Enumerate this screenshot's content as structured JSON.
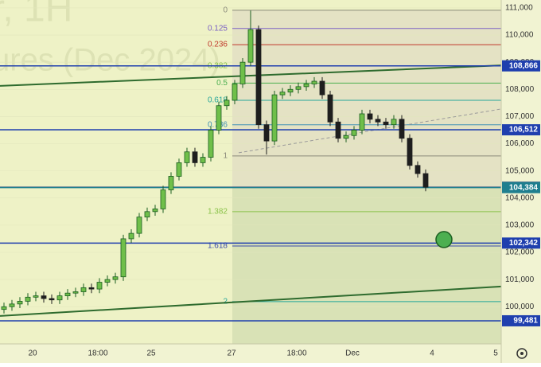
{
  "chart_data": {
    "type": "candlestick",
    "watermark": [
      "r, 1H",
      "ures (Dec 2024)"
    ],
    "x": [
      0.5,
      1.5,
      2.5,
      3.5,
      4.5,
      5.5,
      6.5,
      7.5,
      8.5,
      9.5,
      10.5,
      11.5,
      12.5,
      13.5,
      14.5,
      15.5,
      16.5,
      17.5,
      18.5,
      19.5,
      20.5,
      21.5,
      22.5,
      23.5,
      24.5,
      25.5,
      26.5,
      27.5,
      28.5,
      29.5,
      30.5,
      31.5,
      32.5,
      33.5,
      34.5,
      35.5,
      36.5,
      37.5,
      38.5,
      39.5,
      40.5,
      41.5,
      42.5,
      43.5,
      44.5,
      45.5,
      46.5,
      47.5,
      48.5,
      49.5,
      50.5,
      51.5,
      52.5,
      53.5
    ],
    "open": [
      99900,
      100000,
      100100,
      100200,
      100350,
      100400,
      100300,
      100250,
      100400,
      100500,
      100550,
      100700,
      100650,
      100900,
      101000,
      101100,
      102500,
      102700,
      103300,
      103500,
      103600,
      104300,
      104800,
      105300,
      105700,
      105300,
      105500,
      106500,
      107400,
      107600,
      108200,
      109000,
      110200,
      106700,
      106100,
      107800,
      107900,
      108000,
      108100,
      108200,
      108300,
      107800,
      106800,
      106200,
      106300,
      106500,
      107100,
      106900,
      106800,
      106700,
      106900,
      106200,
      105200,
      104900
    ],
    "high": [
      100150,
      100250,
      100350,
      100500,
      100550,
      100550,
      100450,
      100550,
      100650,
      100700,
      100850,
      100850,
      101050,
      101150,
      101250,
      102650,
      102850,
      103450,
      103650,
      103750,
      104450,
      104950,
      105450,
      105850,
      105850,
      105650,
      106650,
      107550,
      107750,
      108350,
      109150,
      110900,
      110350,
      106850,
      107950,
      108050,
      108150,
      108250,
      108350,
      108450,
      108450,
      107950,
      106950,
      106450,
      106650,
      107250,
      107250,
      107050,
      106950,
      107050,
      107050,
      106350,
      105350,
      105050
    ],
    "low": [
      99750,
      99850,
      99950,
      100050,
      100200,
      100150,
      100100,
      100100,
      100250,
      100350,
      100400,
      100500,
      100500,
      100750,
      100850,
      100950,
      102350,
      102550,
      103150,
      103350,
      103450,
      104150,
      104650,
      105150,
      105150,
      105150,
      105350,
      106350,
      107250,
      107450,
      108050,
      108850,
      106550,
      105600,
      105950,
      107650,
      107750,
      107850,
      107950,
      108050,
      107650,
      106650,
      106050,
      106050,
      106150,
      106350,
      106750,
      106650,
      106550,
      106550,
      106050,
      105050,
      104750,
      104250
    ],
    "close": [
      100000,
      100100,
      100200,
      100350,
      100400,
      100300,
      100250,
      100400,
      100500,
      100550,
      100700,
      100650,
      100900,
      101000,
      101100,
      102500,
      102700,
      103300,
      103500,
      103600,
      104300,
      104800,
      105300,
      105700,
      105300,
      105500,
      106500,
      107400,
      107600,
      108200,
      109000,
      110200,
      106700,
      106100,
      107800,
      107900,
      108000,
      108100,
      108200,
      108300,
      107800,
      106800,
      106200,
      106300,
      106500,
      107100,
      106900,
      106800,
      106700,
      106900,
      106200,
      105200,
      104900,
      104400
    ],
    "up_color": "#1b5e20",
    "down_color": "#1e1e1e",
    "xlim": [
      0,
      63
    ],
    "ylim": [
      98630,
      111290
    ],
    "xticks": [
      {
        "value": 4.1,
        "label": "20"
      },
      {
        "value": 12.3,
        "label": "18:00"
      },
      {
        "value": 19,
        "label": "25"
      },
      {
        "value": 29.1,
        "label": "27"
      },
      {
        "value": 37.3,
        "label": "18:00"
      },
      {
        "value": 44.3,
        "label": "Dec"
      },
      {
        "value": 54.3,
        "label": "4"
      },
      {
        "value": 62.3,
        "label": "5"
      }
    ],
    "yticks": [
      {
        "value": 100000,
        "label": "100,000"
      },
      {
        "value": 101000,
        "label": "101,000"
      },
      {
        "value": 102000,
        "label": "102,000"
      },
      {
        "value": 103000,
        "label": "103,000"
      },
      {
        "value": 104000,
        "label": "104,000"
      },
      {
        "value": 105000,
        "label": "105,000"
      },
      {
        "value": 106000,
        "label": "106,000"
      },
      {
        "value": 107000,
        "label": "107,000"
      },
      {
        "value": 108000,
        "label": "108,000"
      },
      {
        "value": 109000,
        "label": "109,000"
      },
      {
        "value": 110000,
        "label": "110,000"
      },
      {
        "value": 111000,
        "label": "111,000"
      }
    ],
    "fib": [
      {
        "ratio": 0,
        "price": 110912,
        "color": "#8a8a7a"
      },
      {
        "ratio": 0.125,
        "price": 110242,
        "color": "#7b61c4"
      },
      {
        "ratio": 0.236,
        "price": 109646,
        "color": "#c0392b"
      },
      {
        "ratio": 0.382,
        "price": 108863,
        "color": "#8bc34a"
      },
      {
        "ratio": 0.5,
        "price": 108230,
        "color": "#4caf50"
      },
      {
        "ratio": 0.618,
        "price": 107598,
        "color": "#26a69a"
      },
      {
        "ratio": 0.786,
        "price": 106697,
        "color": "#3d8fb5"
      },
      {
        "ratio": 1,
        "price": 105549,
        "color": "#8a8a7a"
      },
      {
        "ratio": 1.382,
        "price": 103500,
        "color": "#8bc34a"
      },
      {
        "ratio": 1.618,
        "price": 102235,
        "color": "#3949ab"
      },
      {
        "ratio": 2,
        "price": 100186,
        "color": "#26a69a"
      }
    ],
    "levels": [
      {
        "value": 108866,
        "label": "108,866",
        "color": "#1f3fae"
      },
      {
        "value": 106512,
        "label": "106,512",
        "color": "#1f3fae"
      },
      {
        "value": 104396,
        "label": "104,396",
        "color": "#1a2a6c"
      },
      {
        "value": 104384,
        "label": "104,384",
        "color": "#1f7f8f"
      },
      {
        "value": 102342,
        "label": "102,342",
        "color": "#1f3fae"
      },
      {
        "value": 99481,
        "label": "99,481",
        "color": "#1f3fae"
      }
    ],
    "trendlines": [
      {
        "x": [
          0,
          63
        ],
        "y": [
          108128,
          108883
        ],
        "color": "#2e6b2e"
      },
      {
        "x": [
          0,
          63
        ],
        "y": [
          99658,
          100742
        ],
        "color": "#2e6b2e"
      },
      {
        "x": [
          30,
          63
        ],
        "y": [
          105666,
          107278
        ],
        "color": "#9a9a9a",
        "dashed": true
      }
    ],
    "marker": {
      "x": 55.8,
      "y": 102471,
      "color": "#4caf50"
    }
  }
}
